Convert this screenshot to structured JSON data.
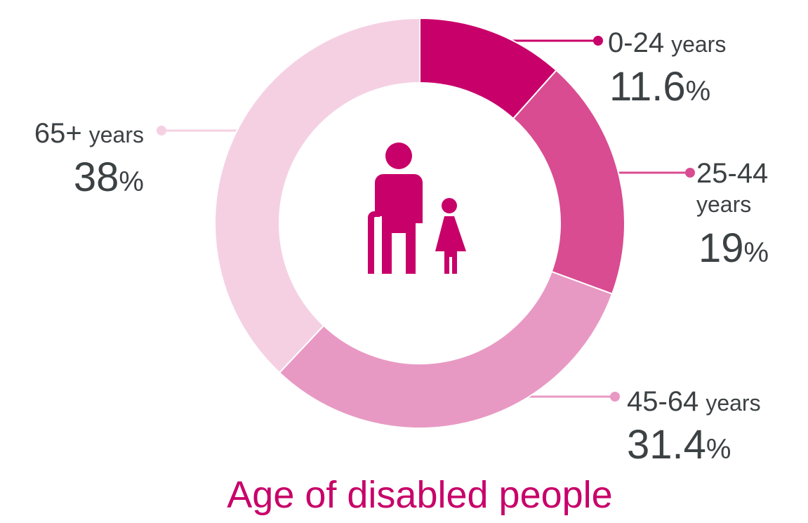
{
  "chart_data": {
    "type": "pie",
    "title": "Age of disabled people",
    "unit": "%",
    "categories": [
      "0-24 years",
      "25-44 years",
      "45-64 years",
      "65+ years"
    ],
    "values": [
      11.6,
      19,
      31.4,
      38
    ],
    "labels": [
      {
        "range": "0-24",
        "suffix": "years",
        "value": "11.6",
        "pct": "%"
      },
      {
        "range": "25-44",
        "suffix": "years",
        "value": "19",
        "pct": "%"
      },
      {
        "range": "45-64",
        "suffix": "years",
        "value": "31.4",
        "pct": "%"
      },
      {
        "range": "65+",
        "suffix": "years",
        "value": "38",
        "pct": "%"
      }
    ],
    "colors": [
      "#c8006a",
      "#d94c91",
      "#e899c3",
      "#f5d0e3"
    ],
    "center_icon": "elderly-person-with-cane-and-child-icon"
  }
}
